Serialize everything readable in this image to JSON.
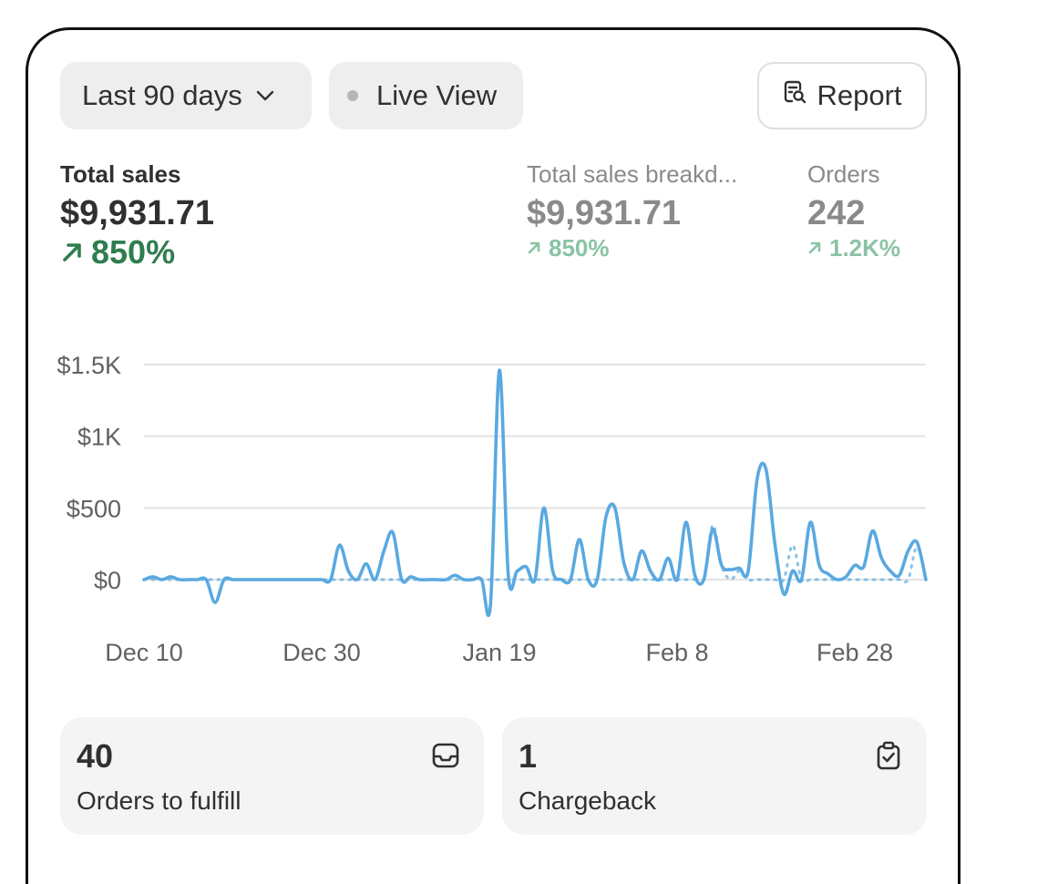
{
  "toolbar": {
    "range_label": "Last 90 days",
    "live_label": "Live View",
    "report_label": "Report"
  },
  "metrics": [
    {
      "label": "Total sales",
      "value": "$9,931.71",
      "change": "850%"
    },
    {
      "label": "Total sales breakd...",
      "value": "$9,931.71",
      "change": "850%"
    },
    {
      "label": "Orders",
      "value": "242",
      "change": "1.2K%"
    }
  ],
  "cards": [
    {
      "value": "40",
      "label": "Orders to fulfill",
      "icon": "inbox-icon"
    },
    {
      "value": "1",
      "label": "Chargeback",
      "icon": "clipboard-check-icon"
    }
  ],
  "colors": {
    "line": "#5aa9e0",
    "positive": "#2f7d4f",
    "positive_muted": "#8ac3a4",
    "grid": "#e3e3e3"
  },
  "chart_data": {
    "type": "line",
    "y_tick_labels": [
      "$0",
      "$500",
      "$1K",
      "$1.5K"
    ],
    "x_tick_labels": [
      "Dec 10",
      "Dec 30",
      "Jan 19",
      "Feb 8",
      "Feb 28"
    ],
    "ylim": [
      -200,
      1500
    ],
    "grid": true,
    "x_days": [
      0,
      1,
      2,
      3,
      4,
      5,
      6,
      7,
      8,
      9,
      10,
      11,
      12,
      13,
      14,
      15,
      16,
      17,
      18,
      19,
      20,
      21,
      22,
      23,
      24,
      25,
      26,
      27,
      28,
      29,
      30,
      31,
      32,
      33,
      34,
      35,
      36,
      37,
      38,
      39,
      40,
      41,
      42,
      43,
      44,
      45,
      46,
      47,
      48,
      49,
      50,
      51,
      52,
      53,
      54,
      55,
      56,
      57,
      58,
      59,
      60,
      61,
      62,
      63,
      64,
      65,
      66,
      67,
      68,
      69,
      70,
      71,
      72,
      73,
      74,
      75,
      76,
      77,
      78,
      79,
      80,
      81,
      82,
      83,
      84,
      85,
      86,
      87,
      88
    ],
    "series": [
      {
        "style": "solid",
        "values": [
          0,
          20,
          0,
          20,
          0,
          0,
          0,
          0,
          -160,
          0,
          0,
          0,
          0,
          0,
          0,
          0,
          0,
          0,
          0,
          0,
          0,
          0,
          240,
          60,
          0,
          110,
          0,
          200,
          330,
          0,
          20,
          0,
          0,
          0,
          0,
          30,
          0,
          0,
          0,
          -170,
          1460,
          30,
          60,
          90,
          0,
          500,
          60,
          0,
          0,
          280,
          0,
          0,
          440,
          500,
          120,
          0,
          200,
          60,
          0,
          150,
          0,
          400,
          30,
          0,
          350,
          100,
          70,
          80,
          60,
          700,
          770,
          250,
          -100,
          60,
          0,
          400,
          100,
          40,
          0,
          20,
          100,
          90,
          340,
          150,
          60,
          30,
          200,
          260,
          0
        ],
        "line_style": "solid"
      },
      {
        "style": "dotted",
        "values": [
          0,
          0,
          0,
          0,
          0,
          0,
          0,
          0,
          0,
          0,
          0,
          0,
          0,
          0,
          0,
          0,
          0,
          0,
          0,
          0,
          0,
          0,
          0,
          0,
          0,
          0,
          0,
          0,
          0,
          0,
          0,
          0,
          0,
          0,
          0,
          0,
          0,
          0,
          0,
          0,
          0,
          0,
          0,
          0,
          0,
          0,
          0,
          0,
          0,
          0,
          0,
          0,
          0,
          0,
          0,
          0,
          0,
          0,
          0,
          0,
          0,
          0,
          0,
          0,
          380,
          100,
          0,
          60,
          0,
          0,
          0,
          0,
          0,
          240,
          0,
          0,
          0,
          0,
          0,
          0,
          0,
          0,
          0,
          0,
          0,
          0,
          0,
          230,
          0
        ],
        "line_style": "dotted"
      }
    ]
  }
}
